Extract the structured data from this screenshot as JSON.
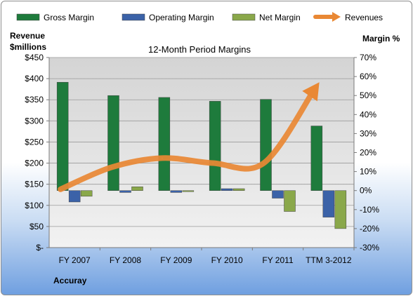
{
  "chart_data": {
    "type": "bar",
    "title": "12-Month Period Margins",
    "categories": [
      "FY 2007",
      "FY 2008",
      "FY 2009",
      "FY 2010",
      "FY 2011",
      "TTM 3-2012"
    ],
    "series": [
      {
        "name": "Gross Margin",
        "axis": "right",
        "type": "bar",
        "color": "#1e7b3c",
        "values": [
          57,
          50,
          49,
          47,
          48,
          34
        ]
      },
      {
        "name": "Operating Margin",
        "axis": "right",
        "type": "bar",
        "color": "#3b62a8",
        "values": [
          -6,
          -1,
          -1,
          1,
          -4,
          -14
        ]
      },
      {
        "name": "Net Margin",
        "axis": "right",
        "type": "bar",
        "color": "#8aa84a",
        "values": [
          -3,
          2,
          -0.5,
          1,
          -11,
          -20
        ]
      },
      {
        "name": "Revenues",
        "axis": "left",
        "type": "line",
        "color": "#e98834",
        "values": [
          138,
          190,
          212,
          200,
          200,
          375
        ]
      }
    ],
    "ylabel_left": "Revenue $millions",
    "ylabel_left_lines": [
      "Revenue",
      "$millions"
    ],
    "ylabel_right": "Margin %",
    "ylim_left": [
      0,
      450
    ],
    "ylim_right": [
      -30,
      70
    ],
    "yticks_left": [
      "$-",
      "$50",
      "$100",
      "$150",
      "$200",
      "$250",
      "$300",
      "$350",
      "$400",
      "$450"
    ],
    "yticks_right": [
      "-30%",
      "-20%",
      "-10%",
      "0%",
      "10%",
      "20%",
      "30%",
      "40%",
      "50%",
      "60%",
      "70%"
    ],
    "legend_position": "top",
    "footer": "Accuray",
    "grid": true
  }
}
